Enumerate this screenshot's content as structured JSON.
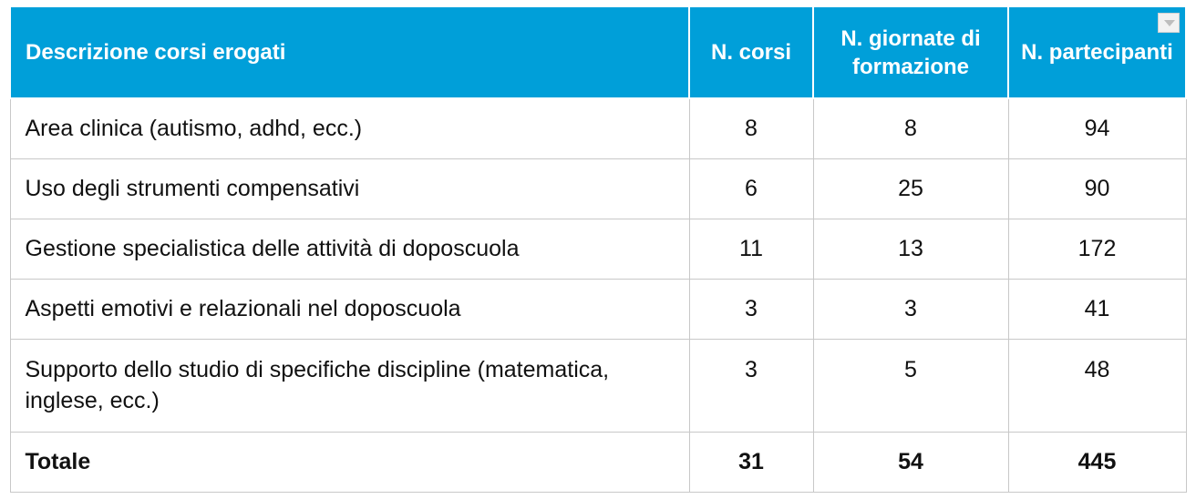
{
  "table": {
    "headers": [
      "Descrizione corsi erogati",
      "N. corsi",
      "N. giornate di formazione",
      "N. partecipanti"
    ],
    "rows": [
      {
        "desc": "Area clinica (autismo, adhd, ecc.)",
        "corsi": "8",
        "giornate": "8",
        "partecipanti": "94"
      },
      {
        "desc": "Uso degli strumenti compensativi",
        "corsi": "6",
        "giornate": "25",
        "partecipanti": "90"
      },
      {
        "desc": "Gestione specialistica delle attività di doposcuola",
        "corsi": "11",
        "giornate": "13",
        "partecipanti": "172"
      },
      {
        "desc": "Aspetti emotivi e relazionali nel doposcuola",
        "corsi": "3",
        "giornate": "3",
        "partecipanti": "41"
      },
      {
        "desc": "Supporto dello studio di specifiche discipline (matematica, inglese, ecc.)",
        "corsi": "3",
        "giornate": "5",
        "partecipanti": "48"
      }
    ],
    "total": {
      "label": "Totale",
      "corsi": "31",
      "giornate": "54",
      "partecipanti": "445"
    },
    "dropdown_icon": "chevron-down-icon"
  },
  "colors": {
    "header_bg": "#009fd9",
    "header_text": "#ffffff",
    "grid": "#c8c8c8"
  }
}
